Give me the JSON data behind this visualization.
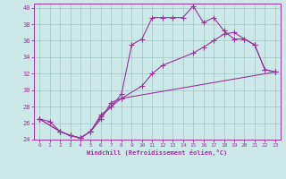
{
  "xlabel": "Windchill (Refroidissement éolien,°C)",
  "bg_color": "#cce8e8",
  "grid_color": "#aacccc",
  "line_color": "#993399",
  "xlim": [
    -0.5,
    23.5
  ],
  "ylim": [
    24,
    40.5
  ],
  "xticks": [
    0,
    1,
    2,
    3,
    4,
    5,
    6,
    7,
    8,
    9,
    10,
    11,
    12,
    13,
    14,
    15,
    16,
    17,
    18,
    19,
    20,
    21,
    22,
    23
  ],
  "yticks": [
    24,
    26,
    28,
    30,
    32,
    34,
    36,
    38,
    40
  ],
  "series1_x": [
    0,
    1,
    2,
    3,
    4,
    5,
    6,
    7,
    8,
    9,
    10,
    11,
    12,
    13,
    14,
    15,
    16,
    17,
    18,
    19,
    20,
    21,
    22,
    23
  ],
  "series1_y": [
    26.5,
    26.2,
    25.0,
    24.5,
    24.2,
    25.0,
    27.0,
    28.0,
    29.5,
    35.5,
    36.2,
    38.8,
    38.8,
    38.8,
    38.8,
    40.2,
    38.2,
    38.8,
    37.2,
    36.2,
    36.2,
    35.5,
    32.5,
    32.2
  ],
  "series2_x": [
    0,
    2,
    3,
    4,
    5,
    6,
    7,
    8,
    10,
    11,
    12,
    15,
    16,
    17,
    18,
    19,
    20,
    21,
    22,
    23
  ],
  "series2_y": [
    26.5,
    25.0,
    24.5,
    24.2,
    25.0,
    26.5,
    28.5,
    29.0,
    30.5,
    32.0,
    33.0,
    34.5,
    35.2,
    36.0,
    36.8,
    37.0,
    36.2,
    35.5,
    32.5,
    32.2
  ],
  "series3_x": [
    0,
    2,
    3,
    4,
    5,
    6,
    7,
    8,
    23
  ],
  "series3_y": [
    26.5,
    25.0,
    24.5,
    24.2,
    25.0,
    26.8,
    28.0,
    29.0,
    32.2
  ]
}
